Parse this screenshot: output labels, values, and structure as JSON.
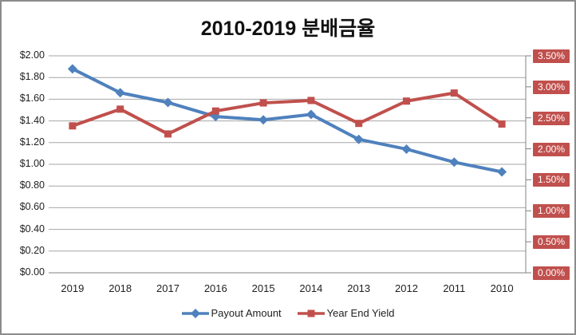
{
  "title": "2010-2019 분배금율",
  "legend": {
    "items": [
      {
        "label": "Payout Amount",
        "marker": "diamond",
        "color": "#4F81BD"
      },
      {
        "label": "Year End Yield",
        "marker": "square",
        "color": "#C0504D"
      }
    ]
  },
  "colors": {
    "series_blue": "#4F81BD",
    "series_red": "#C0504D",
    "gridline": "#A6A6A6",
    "axis_line": "#808080",
    "right_label_bg": "#C0504D",
    "right_label_text": "#FFFFFF",
    "text": "#1F1F1F",
    "frame_border": "#8C8C8C"
  },
  "chart_data": {
    "type": "line",
    "title": "2010-2019 분배금율",
    "categories": [
      "2019",
      "2018",
      "2017",
      "2016",
      "2015",
      "2014",
      "2013",
      "2012",
      "2011",
      "2010"
    ],
    "series": [
      {
        "name": "Payout Amount",
        "axis": "left",
        "color": "#4F81BD",
        "marker": "diamond",
        "values": [
          1.88,
          1.66,
          1.57,
          1.44,
          1.41,
          1.46,
          1.23,
          1.14,
          1.02,
          0.93
        ]
      },
      {
        "name": "Year End Yield",
        "axis": "right",
        "color": "#C0504D",
        "marker": "square",
        "values": [
          2.37,
          2.64,
          2.24,
          2.61,
          2.74,
          2.78,
          2.41,
          2.77,
          2.9,
          2.4
        ]
      }
    ],
    "left_axis": {
      "min": 0,
      "max": 2.0,
      "step": 0.2,
      "tick_labels": [
        "$2.00",
        "$1.80",
        "$1.60",
        "$1.40",
        "$1.20",
        "$1.00",
        "$0.80",
        "$0.60",
        "$0.40",
        "$0.20",
        "$0.00"
      ]
    },
    "right_axis": {
      "min": 0,
      "max": 3.5,
      "step": 0.5,
      "tick_labels": [
        "3.50%",
        "3.00%",
        "2.50%",
        "2.00%",
        "1.50%",
        "1.00%",
        "0.50%",
        "0.00%"
      ]
    },
    "grid": true,
    "legend_position": "bottom"
  }
}
